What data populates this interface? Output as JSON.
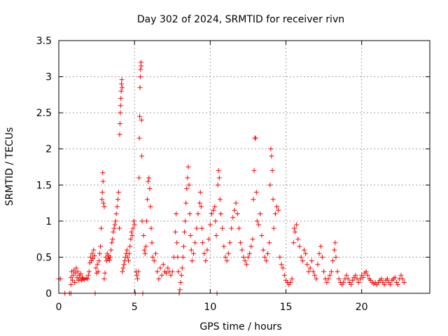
{
  "chart_data": {
    "type": "scatter",
    "title": "Day 302 of 2024, SRMTID for receiver rivn",
    "xlabel": "GPS time / hours",
    "ylabel": "SRMTID / TECUs",
    "xlim": [
      0,
      24.5
    ],
    "ylim": [
      0,
      3.5
    ],
    "xticks": [
      0,
      5,
      10,
      15,
      20
    ],
    "xtick_labels": [
      "0",
      "5",
      "10",
      "15",
      "20"
    ],
    "yticks": [
      0,
      0.5,
      1,
      1.5,
      2,
      2.5,
      3,
      3.5
    ],
    "ytick_labels": [
      "0",
      "0.5",
      "1",
      "1.5",
      "2",
      "2.5",
      "3",
      "3.5"
    ],
    "grid": true,
    "marker": "+",
    "series_color": "#ff0000",
    "series": [
      {
        "name": "SRMTID",
        "points": [
          [
            0.0,
            0.2
          ],
          [
            0.1,
            0.2
          ],
          [
            0.4,
            0.0
          ],
          [
            0.7,
            0.0
          ],
          [
            0.8,
            0.0
          ],
          [
            0.8,
            0.12
          ],
          [
            0.8,
            0.22
          ],
          [
            0.85,
            0.3
          ],
          [
            0.9,
            0.18
          ],
          [
            0.95,
            0.25
          ],
          [
            1.0,
            0.32
          ],
          [
            1.05,
            0.15
          ],
          [
            1.1,
            0.28
          ],
          [
            1.15,
            0.35
          ],
          [
            1.2,
            0.22
          ],
          [
            1.25,
            0.3
          ],
          [
            1.3,
            0.18
          ],
          [
            1.35,
            0.25
          ],
          [
            1.4,
            0.2
          ],
          [
            1.45,
            0.27
          ],
          [
            1.5,
            0.18
          ],
          [
            1.55,
            0.22
          ],
          [
            1.6,
            0.2
          ],
          [
            1.7,
            0.19
          ],
          [
            1.8,
            0.21
          ],
          [
            1.9,
            0.2
          ],
          [
            1.95,
            0.25
          ],
          [
            2.0,
            0.3
          ],
          [
            2.05,
            0.42
          ],
          [
            2.1,
            0.5
          ],
          [
            2.15,
            0.45
          ],
          [
            2.2,
            0.55
          ],
          [
            2.25,
            0.48
          ],
          [
            2.3,
            0.6
          ],
          [
            2.35,
            0.52
          ],
          [
            2.4,
            0.0
          ],
          [
            2.45,
            0.35
          ],
          [
            2.5,
            0.28
          ],
          [
            2.55,
            0.4
          ],
          [
            2.6,
            0.3
          ],
          [
            2.65,
            0.45
          ],
          [
            2.7,
            0.55
          ],
          [
            2.75,
            0.65
          ],
          [
            2.8,
            0.9
          ],
          [
            2.85,
            1.3
          ],
          [
            2.88,
            1.4
          ],
          [
            2.9,
            1.67
          ],
          [
            2.92,
            1.55
          ],
          [
            2.95,
            1.25
          ],
          [
            3.0,
            1.2
          ],
          [
            3.0,
            0.2
          ],
          [
            3.05,
            0.28
          ],
          [
            3.1,
            0.5
          ],
          [
            3.15,
            0.45
          ],
          [
            3.2,
            0.55
          ],
          [
            3.25,
            0.48
          ],
          [
            3.3,
            0.52
          ],
          [
            3.35,
            0.46
          ],
          [
            3.4,
            0.5
          ],
          [
            3.45,
            0.6
          ],
          [
            3.5,
            0.7
          ],
          [
            3.55,
            0.75
          ],
          [
            3.6,
            0.85
          ],
          [
            3.65,
            0.9
          ],
          [
            3.7,
            0.95
          ],
          [
            3.75,
            1.0
          ],
          [
            3.8,
            1.1
          ],
          [
            3.85,
            1.2
          ],
          [
            3.9,
            1.3
          ],
          [
            3.95,
            1.4
          ],
          [
            4.0,
            0.9
          ],
          [
            4.02,
            2.2
          ],
          [
            4.04,
            2.35
          ],
          [
            4.06,
            2.5
          ],
          [
            4.08,
            2.6
          ],
          [
            4.1,
            2.7
          ],
          [
            4.12,
            2.8
          ],
          [
            4.14,
            2.9
          ],
          [
            4.16,
            2.96
          ],
          [
            4.18,
            2.85
          ],
          [
            4.2,
            0.3
          ],
          [
            4.25,
            0.35
          ],
          [
            4.3,
            0.4
          ],
          [
            4.35,
            0.45
          ],
          [
            4.4,
            0.5
          ],
          [
            4.45,
            0.55
          ],
          [
            4.5,
            0.6
          ],
          [
            4.55,
            0.5
          ],
          [
            4.6,
            0.45
          ],
          [
            4.65,
            0.55
          ],
          [
            4.7,
            0.65
          ],
          [
            4.75,
            0.75
          ],
          [
            4.8,
            0.85
          ],
          [
            4.85,
            0.8
          ],
          [
            4.9,
            0.9
          ],
          [
            4.95,
            1.0
          ],
          [
            5.0,
            0.95
          ],
          [
            5.05,
            0.0
          ],
          [
            5.1,
            0.3
          ],
          [
            5.15,
            0.25
          ],
          [
            5.2,
            0.2
          ],
          [
            5.25,
            0.3
          ],
          [
            5.3,
            1.6
          ],
          [
            5.32,
            2.15
          ],
          [
            5.34,
            2.45
          ],
          [
            5.36,
            2.85
          ],
          [
            5.38,
            3.0
          ],
          [
            5.4,
            3.1
          ],
          [
            5.42,
            3.2
          ],
          [
            5.44,
            3.15
          ],
          [
            5.46,
            2.4
          ],
          [
            5.48,
            1.9
          ],
          [
            5.5,
            1.0
          ],
          [
            5.55,
            0.0
          ],
          [
            5.6,
            0.8
          ],
          [
            5.65,
            0.6
          ],
          [
            5.7,
            0.55
          ],
          [
            5.75,
            0.65
          ],
          [
            5.8,
            1.0
          ],
          [
            5.85,
            1.3
          ],
          [
            5.9,
            1.55
          ],
          [
            5.95,
            1.6
          ],
          [
            6.0,
            1.45
          ],
          [
            6.05,
            1.2
          ],
          [
            6.1,
            0.9
          ],
          [
            6.15,
            0.7
          ],
          [
            6.2,
            0.5
          ],
          [
            6.3,
            0.45
          ],
          [
            6.4,
            0.55
          ],
          [
            6.5,
            0.3
          ],
          [
            6.6,
            0.2
          ],
          [
            6.7,
            0.35
          ],
          [
            6.8,
            0.25
          ],
          [
            6.9,
            0.4
          ],
          [
            7.0,
            0.3
          ],
          [
            7.1,
            0.28
          ],
          [
            7.2,
            0.35
          ],
          [
            7.3,
            0.3
          ],
          [
            7.4,
            0.25
          ],
          [
            7.5,
            0.3
          ],
          [
            7.6,
            0.5
          ],
          [
            7.7,
            0.85
          ],
          [
            7.75,
            1.1
          ],
          [
            7.8,
            0.7
          ],
          [
            7.85,
            0.5
          ],
          [
            7.9,
            0.3
          ],
          [
            7.95,
            0.0
          ],
          [
            8.0,
            0.05
          ],
          [
            8.05,
            0.15
          ],
          [
            8.1,
            0.25
          ],
          [
            8.15,
            0.35
          ],
          [
            8.2,
            0.5
          ],
          [
            8.25,
            0.65
          ],
          [
            8.3,
            0.85
          ],
          [
            8.35,
            1.0
          ],
          [
            8.4,
            1.25
          ],
          [
            8.45,
            1.45
          ],
          [
            8.5,
            1.6
          ],
          [
            8.55,
            1.75
          ],
          [
            8.6,
            1.5
          ],
          [
            8.65,
            1.1
          ],
          [
            8.7,
            0.8
          ],
          [
            8.75,
            0.6
          ],
          [
            8.8,
            0.45
          ],
          [
            8.9,
            0.55
          ],
          [
            9.0,
            0.7
          ],
          [
            9.1,
            0.9
          ],
          [
            9.2,
            1.1
          ],
          [
            9.3,
            1.25
          ],
          [
            9.35,
            1.4
          ],
          [
            9.4,
            1.2
          ],
          [
            9.45,
            0.9
          ],
          [
            9.5,
            0.7
          ],
          [
            9.6,
            0.55
          ],
          [
            9.7,
            0.45
          ],
          [
            9.8,
            0.6
          ],
          [
            9.9,
            0.75
          ],
          [
            10.0,
            0.95
          ],
          [
            10.1,
            1.1
          ],
          [
            10.2,
            1.15
          ],
          [
            10.3,
            1.2
          ],
          [
            10.35,
            1.0
          ],
          [
            10.4,
            0.8
          ],
          [
            10.45,
            0.0
          ],
          [
            10.5,
            1.5
          ],
          [
            10.55,
            1.7
          ],
          [
            10.6,
            1.6
          ],
          [
            10.65,
            1.3
          ],
          [
            10.7,
            1.1
          ],
          [
            10.8,
            0.9
          ],
          [
            10.9,
            0.65
          ],
          [
            11.0,
            0.5
          ],
          [
            11.1,
            0.45
          ],
          [
            11.2,
            0.55
          ],
          [
            11.3,
            0.7
          ],
          [
            11.4,
            0.9
          ],
          [
            11.5,
            1.05
          ],
          [
            11.6,
            1.15
          ],
          [
            11.7,
            1.25
          ],
          [
            11.8,
            1.1
          ],
          [
            11.9,
            0.9
          ],
          [
            12.0,
            0.7
          ],
          [
            12.1,
            0.6
          ],
          [
            12.2,
            0.5
          ],
          [
            12.3,
            0.45
          ],
          [
            12.4,
            0.4
          ],
          [
            12.5,
            0.5
          ],
          [
            12.6,
            0.55
          ],
          [
            12.7,
            0.65
          ],
          [
            12.8,
            0.75
          ],
          [
            12.85,
            1.3
          ],
          [
            12.9,
            1.7
          ],
          [
            12.95,
            2.15
          ],
          [
            13.0,
            2.15
          ],
          [
            13.05,
            1.4
          ],
          [
            13.1,
            1.0
          ],
          [
            13.2,
            0.95
          ],
          [
            13.3,
            1.1
          ],
          [
            13.4,
            0.8
          ],
          [
            13.5,
            0.6
          ],
          [
            13.6,
            0.5
          ],
          [
            13.7,
            0.45
          ],
          [
            13.8,
            0.55
          ],
          [
            13.9,
            0.7
          ],
          [
            13.95,
            1.5
          ],
          [
            14.0,
            2.0
          ],
          [
            14.05,
            1.9
          ],
          [
            14.1,
            1.7
          ],
          [
            14.15,
            1.3
          ],
          [
            14.2,
            0.9
          ],
          [
            14.3,
            1.1
          ],
          [
            14.4,
            1.2
          ],
          [
            14.5,
            1.15
          ],
          [
            14.6,
            0.5
          ],
          [
            14.7,
            0.4
          ],
          [
            14.8,
            0.35
          ],
          [
            14.9,
            0.25
          ],
          [
            15.0,
            0.18
          ],
          [
            15.1,
            0.15
          ],
          [
            15.2,
            0.12
          ],
          [
            15.3,
            0.15
          ],
          [
            15.4,
            0.2
          ],
          [
            15.5,
            0.7
          ],
          [
            15.55,
            0.9
          ],
          [
            15.6,
            0.85
          ],
          [
            15.7,
            0.95
          ],
          [
            15.8,
            0.75
          ],
          [
            15.9,
            0.65
          ],
          [
            16.0,
            0.5
          ],
          [
            16.1,
            0.45
          ],
          [
            16.2,
            0.6
          ],
          [
            16.3,
            0.55
          ],
          [
            16.4,
            0.4
          ],
          [
            16.5,
            0.3
          ],
          [
            16.6,
            0.35
          ],
          [
            16.7,
            0.45
          ],
          [
            16.8,
            0.3
          ],
          [
            16.9,
            0.25
          ],
          [
            17.0,
            0.2
          ],
          [
            17.1,
            0.4
          ],
          [
            17.2,
            0.55
          ],
          [
            17.3,
            0.65
          ],
          [
            17.4,
            0.5
          ],
          [
            17.5,
            0.3
          ],
          [
            17.6,
            0.2
          ],
          [
            17.7,
            0.15
          ],
          [
            17.8,
            0.2
          ],
          [
            17.9,
            0.25
          ],
          [
            18.0,
            0.3
          ],
          [
            18.1,
            0.45
          ],
          [
            18.2,
            0.6
          ],
          [
            18.25,
            0.7
          ],
          [
            18.3,
            0.5
          ],
          [
            18.4,
            0.3
          ],
          [
            18.5,
            0.2
          ],
          [
            18.6,
            0.15
          ],
          [
            18.7,
            0.12
          ],
          [
            18.8,
            0.15
          ],
          [
            18.9,
            0.2
          ],
          [
            19.0,
            0.25
          ],
          [
            19.1,
            0.2
          ],
          [
            19.2,
            0.15
          ],
          [
            19.3,
            0.12
          ],
          [
            19.4,
            0.18
          ],
          [
            19.5,
            0.22
          ],
          [
            19.6,
            0.25
          ],
          [
            19.7,
            0.2
          ],
          [
            19.8,
            0.15
          ],
          [
            19.9,
            0.2
          ],
          [
            20.0,
            0.25
          ],
          [
            20.1,
            0.22
          ],
          [
            20.2,
            0.28
          ],
          [
            20.3,
            0.3
          ],
          [
            20.4,
            0.25
          ],
          [
            20.5,
            0.2
          ],
          [
            20.6,
            0.18
          ],
          [
            20.7,
            0.15
          ],
          [
            20.8,
            0.13
          ],
          [
            20.9,
            0.15
          ],
          [
            21.0,
            0.12
          ],
          [
            21.1,
            0.15
          ],
          [
            21.2,
            0.18
          ],
          [
            21.3,
            0.2
          ],
          [
            21.4,
            0.15
          ],
          [
            21.5,
            0.12
          ],
          [
            21.6,
            0.18
          ],
          [
            21.7,
            0.2
          ],
          [
            21.8,
            0.15
          ],
          [
            21.9,
            0.12
          ],
          [
            22.0,
            0.18
          ],
          [
            22.1,
            0.2
          ],
          [
            22.2,
            0.22
          ],
          [
            22.3,
            0.15
          ],
          [
            22.4,
            0.12
          ],
          [
            22.5,
            0.2
          ],
          [
            22.6,
            0.25
          ],
          [
            22.7,
            0.2
          ],
          [
            22.8,
            0.15
          ]
        ]
      }
    ]
  }
}
